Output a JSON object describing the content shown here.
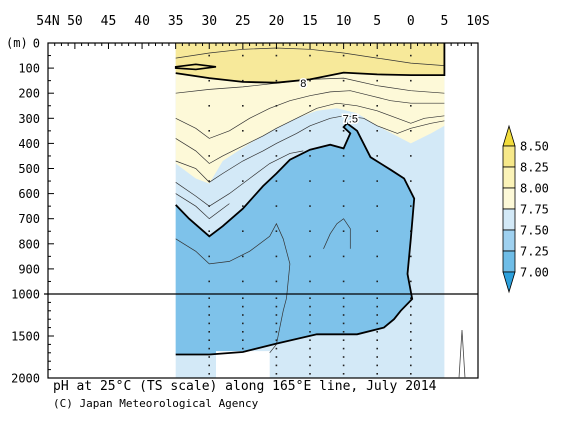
{
  "chart_data": {
    "type": "heatmap",
    "title": "pH at 25°C (TS scale) along 165°E line, July 2014",
    "credit": "(C) Japan Meteorological Agency",
    "x_ticks": [
      "54N",
      "50",
      "45",
      "40",
      "35",
      "30",
      "25",
      "20",
      "15",
      "10",
      "5",
      "0",
      "5",
      "10S"
    ],
    "x_tick_values": [
      54,
      50,
      45,
      40,
      35,
      30,
      25,
      20,
      15,
      10,
      5,
      0,
      -5,
      -10
    ],
    "xlim": [
      54,
      -10
    ],
    "y_unit": "(m)",
    "y_ticks_upper": [
      "0",
      "100",
      "200",
      "300",
      "400",
      "500",
      "600",
      "700",
      "800",
      "900",
      "1000"
    ],
    "y_ticks_lower": [
      "1500",
      "2000"
    ],
    "ylim_upper": [
      0,
      1000
    ],
    "ylim_lower": [
      1000,
      2000
    ],
    "data_extent_lat": [
      35,
      -5
    ],
    "contour_labels": [
      {
        "text": "8",
        "lat": 16,
        "depth": 160
      },
      {
        "text": "7.5",
        "lat": 9,
        "depth": 300
      }
    ],
    "station_lats": [
      30,
      25,
      20,
      15,
      10,
      5,
      0
    ],
    "colorbar": {
      "labels": [
        "8.50",
        "8.25",
        "8.00",
        "7.75",
        "7.50",
        "7.25",
        "7.00"
      ],
      "bands": [
        "#f1dc3c",
        "#f6e88a",
        "#fbf3b8",
        "#fdf9d8",
        "#d3e9f7",
        "#9fd1f0",
        "#6fbde7",
        "#2ca0dc"
      ]
    },
    "colors": {
      "ph_above_8": "#f7e99a",
      "ph_775_8": "#fdf9d8",
      "ph_75_775": "#d3e9f7",
      "ph_below_75": "#7ec2ea",
      "no_data": "#ffffff"
    }
  }
}
